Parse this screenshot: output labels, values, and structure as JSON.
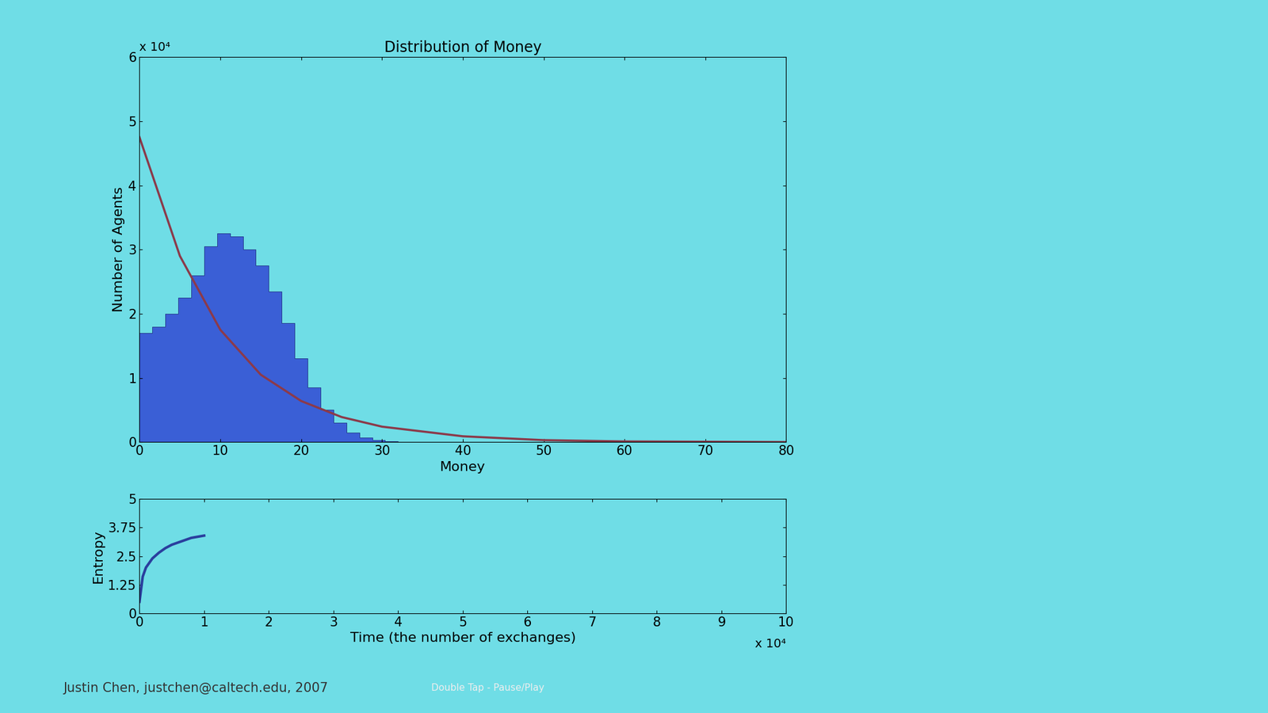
{
  "chart_data": [
    {
      "type": "histogram",
      "title": "Distribution of Money",
      "x_label": "Money",
      "y_label": "Number of Agents",
      "bins": [
        0,
        1.6,
        3.2,
        4.8,
        6.4,
        8.0,
        9.6,
        11.2,
        12.8,
        14.4,
        16.0,
        17.6,
        19.2,
        20.8,
        22.4,
        24.0,
        25.6,
        27.2,
        28.8,
        30.4,
        32.0
      ],
      "values": [
        1.7,
        1.8,
        2.0,
        2.25,
        2.6,
        3.05,
        3.25,
        3.2,
        3.0,
        2.75,
        2.35,
        1.85,
        1.3,
        0.85,
        0.5,
        0.3,
        0.15,
        0.07,
        0.03,
        0.01
      ],
      "color": "#3a5fd6",
      "overlay": {
        "type": "line",
        "x": [
          0,
          5,
          10,
          15,
          20,
          25,
          30,
          40,
          50,
          60,
          70,
          80
        ],
        "values": [
          4.75,
          2.9,
          1.75,
          1.05,
          0.64,
          0.39,
          0.24,
          0.09,
          0.03,
          0.01,
          0.005,
          0.0
        ],
        "color": "#8b3a4a"
      },
      "xlim": [
        0,
        80
      ],
      "xticks": [
        0,
        10,
        20,
        30,
        40,
        50,
        60,
        70,
        80
      ],
      "ylim": [
        0,
        6
      ],
      "yticks": [
        0,
        1,
        2,
        3,
        4,
        5,
        6
      ],
      "annotations": [
        "x 10⁴"
      ],
      "grid": false
    },
    {
      "type": "line",
      "x_label": "Time (the number of exchanges)",
      "y_label": "Entropy",
      "x": [
        0,
        0.05,
        0.1,
        0.2,
        0.3,
        0.4,
        0.5,
        0.6,
        0.7,
        0.8,
        0.9,
        1.0
      ],
      "values": [
        0.5,
        1.6,
        2.0,
        2.4,
        2.65,
        2.85,
        3.0,
        3.1,
        3.2,
        3.3,
        3.35,
        3.4
      ],
      "color": "#2a3f9e",
      "xlim": [
        0,
        10
      ],
      "xticks": [
        0,
        1,
        2,
        3,
        4,
        5,
        6,
        7,
        8,
        9,
        10
      ],
      "ylim": [
        0,
        5
      ],
      "yticks": [
        0,
        1.25,
        2.5,
        3.75,
        5
      ],
      "annotations": [
        "x 10⁴"
      ],
      "grid": false
    }
  ],
  "footer": [
    "Justin Chen, justchen@caltech.edu, 2007",
    "Double Tap - Pause/Play"
  ]
}
